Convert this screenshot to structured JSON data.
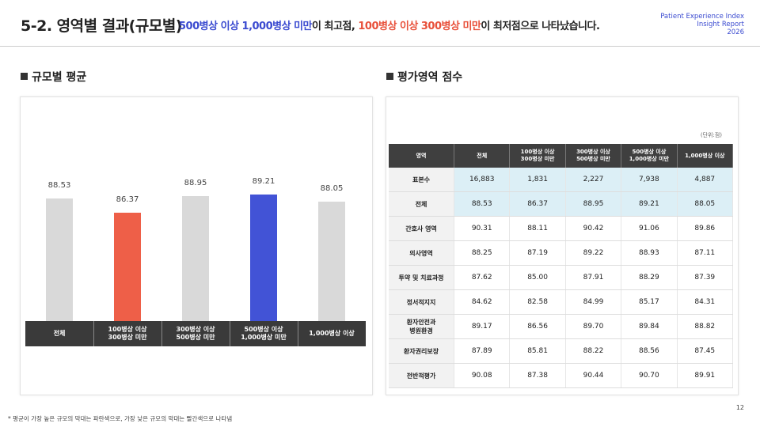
{
  "header": {
    "title": "5-2. 영역별 결과(규모별)",
    "subtitle": [
      "500병상 이상 1,000병상 미만",
      "이 최고점, ",
      "100병상 이상 300병상 미만",
      "이 최저점으로 나타났습니다."
    ],
    "brand": [
      "Patient Experience Index",
      "Insight Report",
      "2026"
    ]
  },
  "chart_data": {
    "type": "bar",
    "title": "규모별 평균",
    "categories": [
      "전체",
      "100병상 이상\n300병상 미만",
      "300병상 이상\n500병상 미만",
      "500병상 이상\n1,000병상 미만",
      "1,000병상 이상"
    ],
    "values": [
      88.53,
      86.37,
      88.95,
      89.21,
      88.05
    ],
    "colors": [
      "#d9d9d9",
      "#ee5f48",
      "#d9d9d9",
      "#4253d6",
      "#d9d9d9"
    ],
    "ylim": [
      70,
      90
    ]
  },
  "table": {
    "title": "평가영역 점수",
    "unit": "(단위:점)",
    "columns": [
      "영역",
      "전체",
      "100병상 이상\n300병상 미만",
      "300병상 이상\n500병상 미만",
      "500병상 이상\n1,000병상 미만",
      "1,000병상 이상"
    ],
    "rows": [
      [
        "표본수",
        "16,883",
        "1,831",
        "2,227",
        "7,938",
        "4,887"
      ],
      [
        "전체",
        "88.53",
        "86.37",
        "88.95",
        "89.21",
        "88.05"
      ],
      [
        "간호사 영역",
        "90.31",
        "88.11",
        "90.42",
        "91.06",
        "89.86"
      ],
      [
        "의사영역",
        "88.25",
        "87.19",
        "89.22",
        "88.93",
        "87.11"
      ],
      [
        "투약 및 치료과정",
        "87.62",
        "85.00",
        "87.91",
        "88.29",
        "87.39"
      ],
      [
        "정서적지지",
        "84.62",
        "82.58",
        "84.99",
        "85.17",
        "84.31"
      ],
      [
        "환자안전과\n병원환경",
        "89.17",
        "86.56",
        "89.70",
        "89.84",
        "88.82"
      ],
      [
        "환자권리보장",
        "87.89",
        "85.81",
        "88.22",
        "88.56",
        "87.45"
      ],
      [
        "전반적평가",
        "90.08",
        "87.38",
        "90.44",
        "90.70",
        "89.91"
      ]
    ]
  },
  "footnote": "* 평균이 가장 높은 규모의 막대는 파란색으로, 가장 낮은 규모의 막대는 빨간색으로 나타냄",
  "page_number": "12"
}
